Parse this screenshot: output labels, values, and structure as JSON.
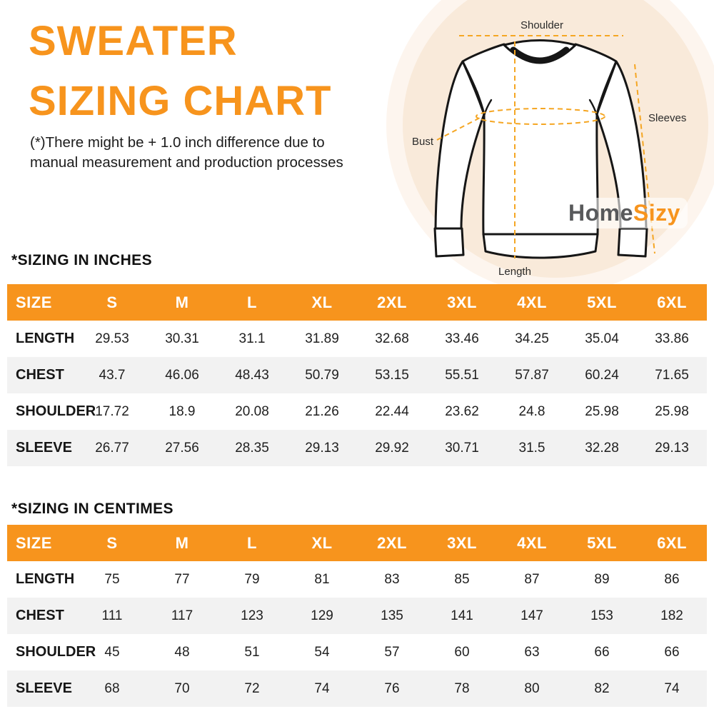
{
  "colors": {
    "accent_orange": "#F7941D",
    "header_text": "#FFFFFF",
    "row_alt_gray": "#F2F2F2",
    "text_dark": "#1C1C1C",
    "logo_gray": "#58595B",
    "dashed_line_orange": "#F5A623",
    "circle_outer": "#FDF5EE",
    "circle_inner": "#F9EADA"
  },
  "title": {
    "line1": "SWEATER",
    "line2": "SIZING CHART"
  },
  "disclaimer": {
    "line1": "(*)There might be + 1.0 inch difference due to",
    "line2": "manual measurement and production processes"
  },
  "logo": {
    "part1": "Home",
    "part2": "Sizy"
  },
  "diagram": {
    "shoulder_label": "Shoulder",
    "sleeves_label": "Sleeves",
    "bust_label": "Bust",
    "length_label": "Length"
  },
  "tables": {
    "inches": {
      "heading": "*SIZING IN INCHES",
      "headers": [
        "SIZE",
        "S",
        "M",
        "L",
        "XL",
        "2XL",
        "3XL",
        "4XL",
        "5XL",
        "6XL"
      ],
      "rows": [
        {
          "label": "LENGTH",
          "values": [
            "29.53",
            "30.31",
            "31.1",
            "31.89",
            "32.68",
            "33.46",
            "34.25",
            "35.04",
            "33.86"
          ]
        },
        {
          "label": "CHEST",
          "values": [
            "43.7",
            "46.06",
            "48.43",
            "50.79",
            "53.15",
            "55.51",
            "57.87",
            "60.24",
            "71.65"
          ]
        },
        {
          "label": "SHOULDER",
          "values": [
            "17.72",
            "18.9",
            "20.08",
            "21.26",
            "22.44",
            "23.62",
            "24.8",
            "25.98",
            "25.98"
          ]
        },
        {
          "label": "SLEEVE",
          "values": [
            "26.77",
            "27.56",
            "28.35",
            "29.13",
            "29.92",
            "30.71",
            "31.5",
            "32.28",
            "29.13"
          ]
        }
      ]
    },
    "centimes": {
      "heading": "*SIZING IN CENTIMES",
      "headers": [
        "SIZE",
        "S",
        "M",
        "L",
        "XL",
        "2XL",
        "3XL",
        "4XL",
        "5XL",
        "6XL"
      ],
      "rows": [
        {
          "label": "LENGTH",
          "values": [
            "75",
            "77",
            "79",
            "81",
            "83",
            "85",
            "87",
            "89",
            "86"
          ]
        },
        {
          "label": "CHEST",
          "values": [
            "111",
            "117",
            "123",
            "129",
            "135",
            "141",
            "147",
            "153",
            "182"
          ]
        },
        {
          "label": "SHOULDER",
          "values": [
            "45",
            "48",
            "51",
            "54",
            "57",
            "60",
            "63",
            "66",
            "66"
          ]
        },
        {
          "label": "SLEEVE",
          "values": [
            "68",
            "70",
            "72",
            "74",
            "76",
            "78",
            "80",
            "82",
            "74"
          ]
        }
      ]
    }
  },
  "chart_data": [
    {
      "type": "table",
      "title": "*SIZING IN INCHES",
      "columns": [
        "SIZE",
        "S",
        "M",
        "L",
        "XL",
        "2XL",
        "3XL",
        "4XL",
        "5XL",
        "6XL"
      ],
      "rows": [
        [
          "LENGTH",
          29.53,
          30.31,
          31.1,
          31.89,
          32.68,
          33.46,
          34.25,
          35.04,
          33.86
        ],
        [
          "CHEST",
          43.7,
          46.06,
          48.43,
          50.79,
          53.15,
          55.51,
          57.87,
          60.24,
          71.65
        ],
        [
          "SHOULDER",
          17.72,
          18.9,
          20.08,
          21.26,
          22.44,
          23.62,
          24.8,
          25.98,
          25.98
        ],
        [
          "SLEEVE",
          26.77,
          27.56,
          28.35,
          29.13,
          29.92,
          30.71,
          31.5,
          32.28,
          29.13
        ]
      ]
    },
    {
      "type": "table",
      "title": "*SIZING IN CENTIMES",
      "columns": [
        "SIZE",
        "S",
        "M",
        "L",
        "XL",
        "2XL",
        "3XL",
        "4XL",
        "5XL",
        "6XL"
      ],
      "rows": [
        [
          "LENGTH",
          75,
          77,
          79,
          81,
          83,
          85,
          87,
          89,
          86
        ],
        [
          "CHEST",
          111,
          117,
          123,
          129,
          135,
          141,
          147,
          153,
          182
        ],
        [
          "SHOULDER",
          45,
          48,
          51,
          54,
          57,
          60,
          63,
          66,
          66
        ],
        [
          "SLEEVE",
          68,
          70,
          72,
          74,
          76,
          78,
          80,
          82,
          74
        ]
      ]
    }
  ]
}
